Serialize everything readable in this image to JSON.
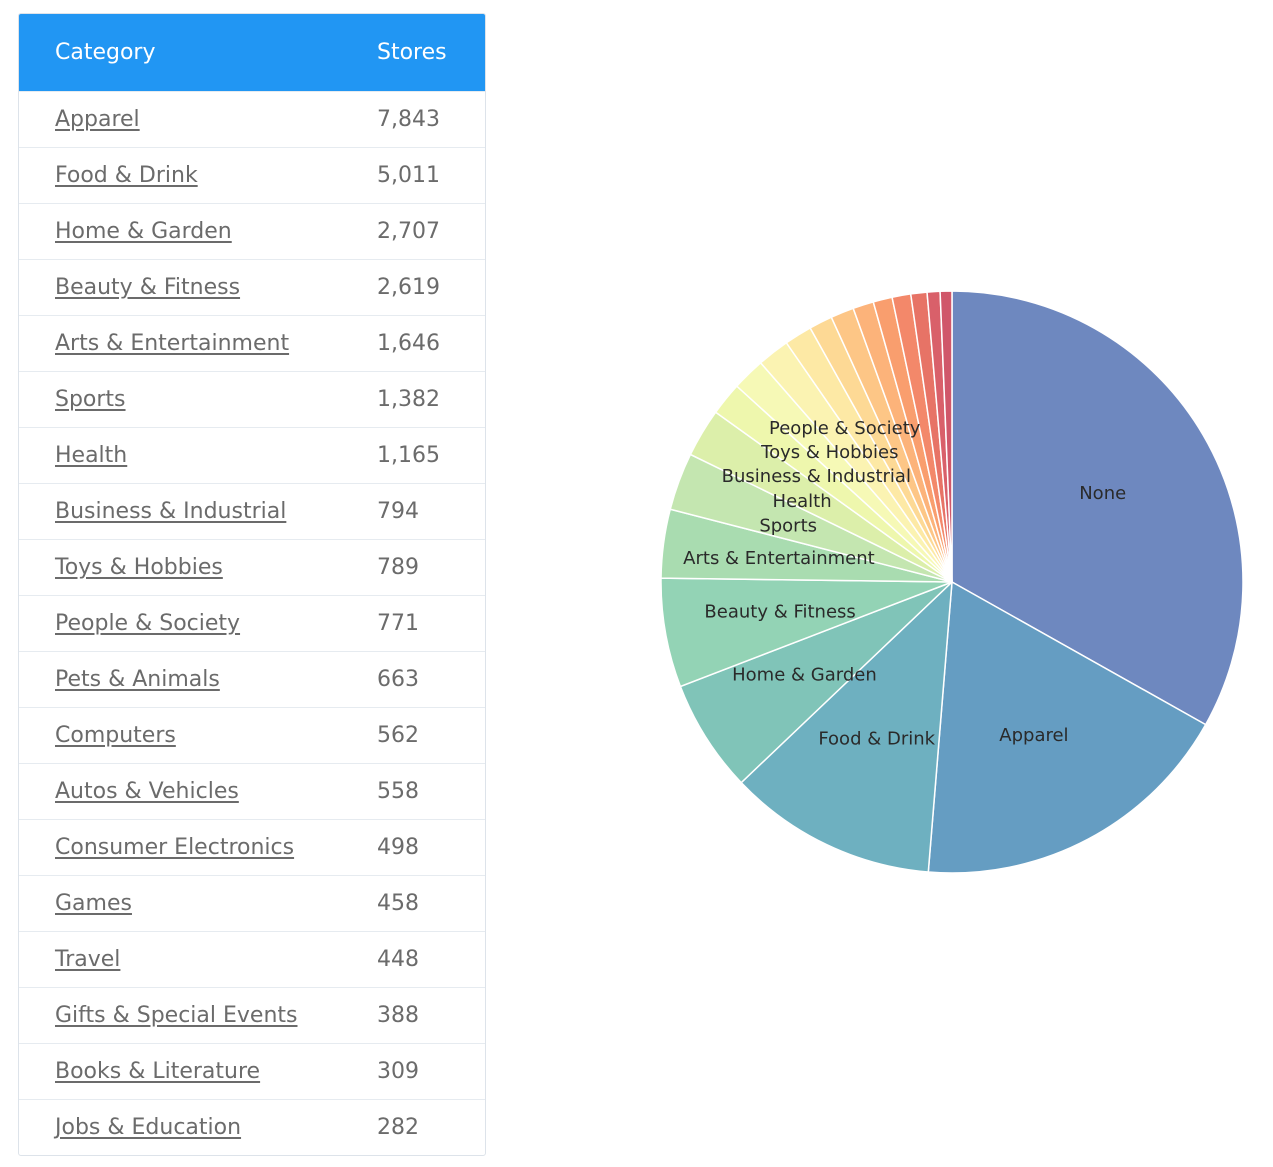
{
  "table": {
    "headers": [
      "Category",
      "Stores"
    ],
    "rows": [
      [
        "Apparel",
        "7,843"
      ],
      [
        "Food & Drink",
        "5,011"
      ],
      [
        "Home & Garden",
        "2,707"
      ],
      [
        "Beauty & Fitness",
        "2,619"
      ],
      [
        "Arts & Entertainment",
        "1,646"
      ],
      [
        "Sports",
        "1,382"
      ],
      [
        "Health",
        "1,165"
      ],
      [
        "Business & Industrial",
        "794"
      ],
      [
        "Toys & Hobbies",
        "789"
      ],
      [
        "People & Society",
        "771"
      ],
      [
        "Pets & Animals",
        "663"
      ],
      [
        "Computers",
        "562"
      ],
      [
        "Autos & Vehicles",
        "558"
      ],
      [
        "Consumer Electronics",
        "498"
      ],
      [
        "Games",
        "458"
      ],
      [
        "Travel",
        "448"
      ],
      [
        "Gifts & Special Events",
        "388"
      ],
      [
        "Books & Literature",
        "309"
      ],
      [
        "Jobs & Education",
        "282"
      ]
    ]
  },
  "chart_data": {
    "type": "pie",
    "title": "",
    "slices": [
      {
        "label": "None",
        "value": 14330,
        "show_label": true
      },
      {
        "label": "Apparel",
        "value": 7843,
        "show_label": true
      },
      {
        "label": "Food & Drink",
        "value": 5011,
        "show_label": true
      },
      {
        "label": "Home & Garden",
        "value": 2707,
        "show_label": true
      },
      {
        "label": "Beauty & Fitness",
        "value": 2619,
        "show_label": true
      },
      {
        "label": "Arts & Entertainment",
        "value": 1646,
        "show_label": true
      },
      {
        "label": "Sports",
        "value": 1382,
        "show_label": true
      },
      {
        "label": "Health",
        "value": 1165,
        "show_label": true
      },
      {
        "label": "Business & Industrial",
        "value": 794,
        "show_label": true
      },
      {
        "label": "Toys & Hobbies",
        "value": 789,
        "show_label": true
      },
      {
        "label": "People & Society",
        "value": 771,
        "show_label": true
      },
      {
        "label": "Pets & Animals",
        "value": 663,
        "show_label": false
      },
      {
        "label": "Computers",
        "value": 562,
        "show_label": false
      },
      {
        "label": "Autos & Vehicles",
        "value": 558,
        "show_label": false
      },
      {
        "label": "Consumer Electronics",
        "value": 498,
        "show_label": false
      },
      {
        "label": "Games",
        "value": 458,
        "show_label": false
      },
      {
        "label": "Travel",
        "value": 448,
        "show_label": false
      },
      {
        "label": "Gifts & Special Events",
        "value": 388,
        "show_label": false
      },
      {
        "label": "Books & Literature",
        "value": 309,
        "show_label": false
      },
      {
        "label": "Jobs & Education",
        "value": 282,
        "show_label": false
      }
    ],
    "colors": [
      "#6e88bf",
      "#659dc2",
      "#6eb0c0",
      "#80c4b8",
      "#93d3b5",
      "#a9dcb0",
      "#c4e6b0",
      "#dcefaa",
      "#eef7ad",
      "#f6f9b6",
      "#fbf3b2",
      "#fde9a5",
      "#fdd995",
      "#fdc686",
      "#fcb37a",
      "#f99e6e",
      "#f3886a",
      "#e77366",
      "#d9606a",
      "#d0576a"
    ]
  }
}
